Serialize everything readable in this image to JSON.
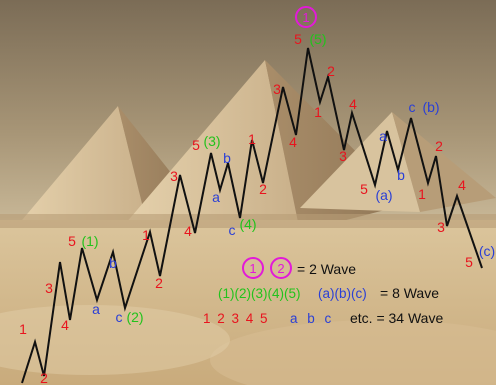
{
  "colors": {
    "red": "#e8141e",
    "green": "#22c31c",
    "blue": "#2a3fd6",
    "magenta": "#e21ad8",
    "black": "#111111"
  },
  "top_marker": {
    "text": "1"
  },
  "wave_labels": [
    {
      "id": "w-1-red",
      "text": "1",
      "color": "red"
    },
    {
      "id": "w-2-red-bottom",
      "text": "2",
      "color": "red"
    },
    {
      "id": "w-3-red",
      "text": "3",
      "color": "red"
    },
    {
      "id": "w-4-red",
      "text": "4",
      "color": "red"
    },
    {
      "id": "w-5-red-low",
      "text": "5",
      "color": "red"
    },
    {
      "id": "w-1-green",
      "text": "(1)",
      "color": "green"
    },
    {
      "id": "w-a-blue-1",
      "text": "a",
      "color": "blue"
    },
    {
      "id": "w-b-blue-1",
      "text": "b",
      "color": "blue"
    },
    {
      "id": "w-c-blue-1",
      "text": "c",
      "color": "blue"
    },
    {
      "id": "w-2-green",
      "text": "(2)",
      "color": "green"
    },
    {
      "id": "w-1-red-2",
      "text": "1",
      "color": "red"
    },
    {
      "id": "w-2-red-2",
      "text": "2",
      "color": "red"
    },
    {
      "id": "w-3-red-2",
      "text": "3",
      "color": "red"
    },
    {
      "id": "w-4-red-2",
      "text": "4",
      "color": "red"
    },
    {
      "id": "w-5-red-mid",
      "text": "5",
      "color": "red"
    },
    {
      "id": "w-3-green",
      "text": "(3)",
      "color": "green"
    },
    {
      "id": "w-a-blue-2",
      "text": "a",
      "color": "blue"
    },
    {
      "id": "w-b-blue-2",
      "text": "b",
      "color": "blue"
    },
    {
      "id": "w-c-blue-2",
      "text": "c",
      "color": "blue"
    },
    {
      "id": "w-4-green",
      "text": "(4)",
      "color": "green"
    },
    {
      "id": "w-1-red-3",
      "text": "1",
      "color": "red"
    },
    {
      "id": "w-2-red-3",
      "text": "2",
      "color": "red"
    },
    {
      "id": "w-3-red-3",
      "text": "3",
      "color": "red"
    },
    {
      "id": "w-4-red-3",
      "text": "4",
      "color": "red"
    },
    {
      "id": "w-5-red-top",
      "text": "5",
      "color": "red"
    },
    {
      "id": "w-5-green",
      "text": "(5)",
      "color": "green"
    },
    {
      "id": "w-1-red-4",
      "text": "1",
      "color": "red"
    },
    {
      "id": "w-2-red-4",
      "text": "2",
      "color": "red"
    },
    {
      "id": "w-3-red-4",
      "text": "3",
      "color": "red"
    },
    {
      "id": "w-4-red-4",
      "text": "4",
      "color": "red"
    },
    {
      "id": "w-5-red-a",
      "text": "5",
      "color": "red"
    },
    {
      "id": "w-a-paren",
      "text": "(a)",
      "color": "blue"
    },
    {
      "id": "w-a-blue-3",
      "text": "a",
      "color": "blue"
    },
    {
      "id": "w-b-blue-3",
      "text": "b",
      "color": "blue"
    },
    {
      "id": "w-c-blue-3",
      "text": "c",
      "color": "blue"
    },
    {
      "id": "w-b-paren",
      "text": "(b)",
      "color": "blue"
    },
    {
      "id": "w-1-red-5",
      "text": "1",
      "color": "red"
    },
    {
      "id": "w-2-red-5",
      "text": "2",
      "color": "red"
    },
    {
      "id": "w-3-red-5",
      "text": "3",
      "color": "red"
    },
    {
      "id": "w-4-red-5",
      "text": "4",
      "color": "red"
    },
    {
      "id": "w-5-red-c",
      "text": "5",
      "color": "red"
    },
    {
      "id": "w-c-paren",
      "text": "(c)",
      "color": "blue"
    }
  ],
  "legend": {
    "row1": {
      "circle1": "1",
      "circle2": "2",
      "text": "= 2 Wave"
    },
    "row2": {
      "green": "(1)(2)(3)(4)(5)",
      "blue": "(a)(b)(c)",
      "text": "= 8 Wave"
    },
    "row3": {
      "red": "1 2 3 4 5",
      "blue": "a b c",
      "text": "etc. = 34 Wave"
    }
  }
}
